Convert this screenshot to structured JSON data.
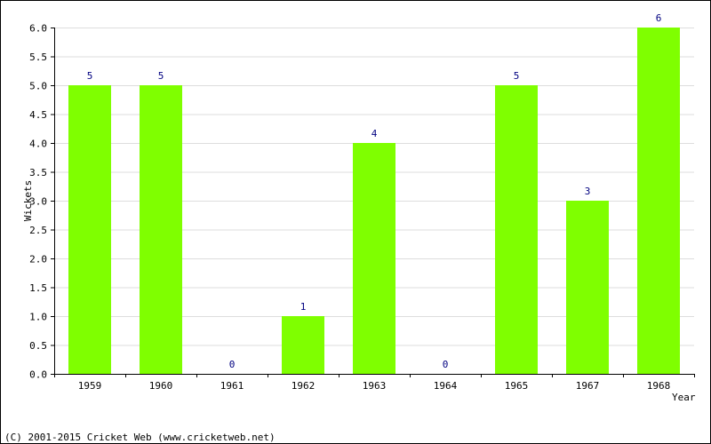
{
  "chart_data": {
    "type": "bar",
    "categories": [
      "1959",
      "1960",
      "1961",
      "1962",
      "1963",
      "1964",
      "1965",
      "1967",
      "1968"
    ],
    "values": [
      5,
      5,
      0,
      1,
      4,
      0,
      5,
      3,
      6
    ],
    "value_labels": [
      "5",
      "5",
      "0",
      "1",
      "4",
      "0",
      "5",
      "3",
      "6"
    ],
    "y_ticks": [
      "0.0",
      "0.5",
      "1.0",
      "1.5",
      "2.0",
      "2.5",
      "3.0",
      "3.5",
      "4.0",
      "4.5",
      "5.0",
      "5.5",
      "6.0"
    ],
    "ylim": [
      0,
      6
    ],
    "xlabel": "Year",
    "ylabel": "Wickets",
    "grid": true,
    "legend": "none",
    "bar_color": "#7fff00",
    "label_color": "#000080",
    "grid_color": "#dddddd"
  },
  "footer": {
    "copyright": "(C) 2001-2015 Cricket Web (www.cricketweb.net)"
  }
}
